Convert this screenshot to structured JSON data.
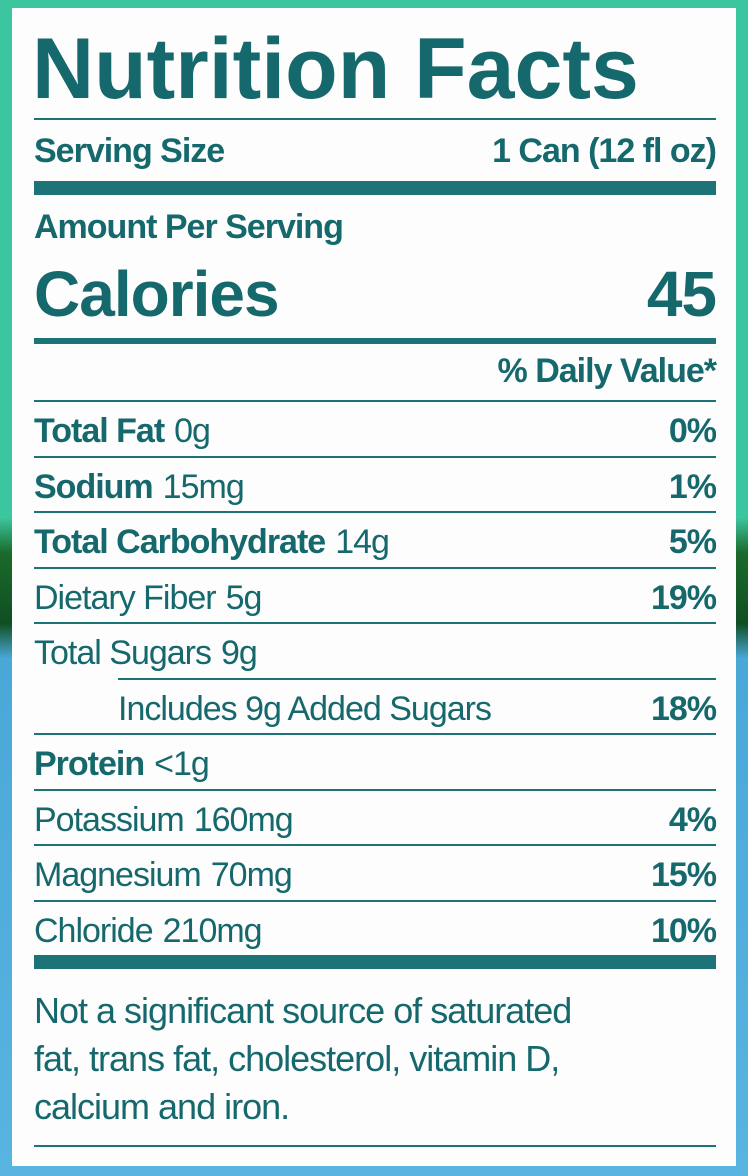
{
  "title": "Nutrition Facts",
  "serving": {
    "label": "Serving Size",
    "value": "1 Can (12 fl oz)"
  },
  "amount_per_serving": "Amount Per Serving",
  "calories": {
    "label": "Calories",
    "value": "45"
  },
  "daily_value_header": "% Daily Value*",
  "rows": [
    {
      "name": "Total Fat",
      "amount": "0g",
      "dv": "0%",
      "bold": true
    },
    {
      "name": "Sodium",
      "amount": "15mg",
      "dv": "1%",
      "bold": true
    },
    {
      "name": "Total Carbohydrate",
      "amount": "14g",
      "dv": "5%",
      "bold": true
    },
    {
      "name": "Dietary Fiber",
      "amount": "5g",
      "dv": "19%",
      "bold": false
    },
    {
      "name": "Total Sugars",
      "amount": "9g",
      "bold": false
    },
    {
      "name": "Includes 9g Added Sugars",
      "dv": "18%",
      "bold": false,
      "indent": true
    },
    {
      "name": "Protein",
      "amount": "<1g",
      "bold": true
    },
    {
      "name": "Potassium",
      "amount": "160mg",
      "dv": "4%",
      "bold": false
    },
    {
      "name": "Magnesium",
      "amount": "70mg",
      "dv": "15%",
      "bold": false
    },
    {
      "name": "Chloride",
      "amount": "210mg",
      "dv": "10%",
      "bold": false
    }
  ],
  "footnote": [
    "Not a significant source of saturated",
    "fat, trans fat, cholesterol, vitamin D,",
    "calcium and iron."
  ]
}
